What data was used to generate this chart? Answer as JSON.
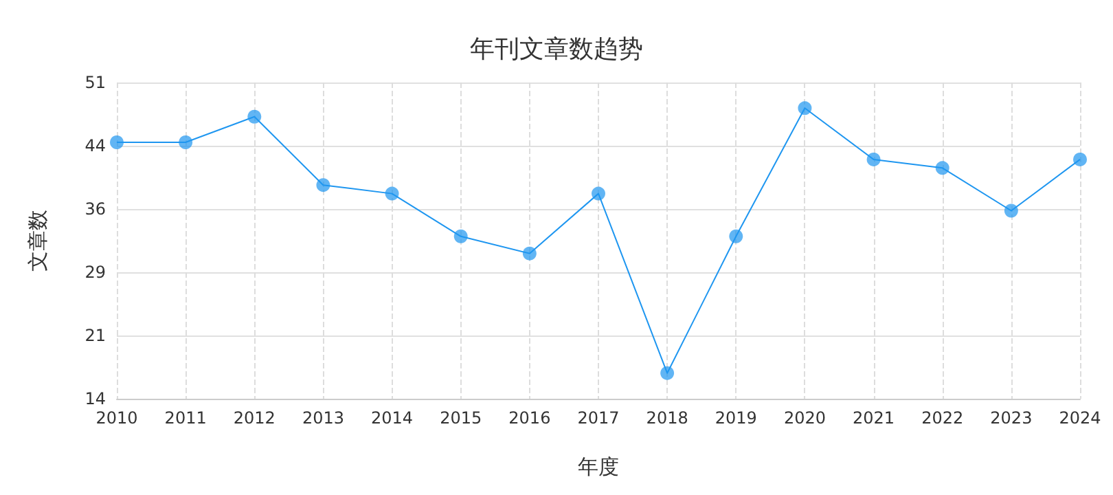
{
  "chart_data": {
    "type": "line",
    "title": "年刊文章数趋势",
    "xlabel": "年度",
    "ylabel": "文章数",
    "categories": [
      "2010",
      "2011",
      "2012",
      "2013",
      "2014",
      "2015",
      "2016",
      "2017",
      "2018",
      "2019",
      "2020",
      "2021",
      "2022",
      "2023",
      "2024"
    ],
    "series": [
      {
        "color": "#1e96f0",
        "values": [
          44,
          44,
          47,
          39,
          38,
          33,
          31,
          38,
          17,
          33,
          48,
          42,
          41,
          36,
          42
        ]
      }
    ],
    "ylim": [
      14,
      51
    ],
    "yticks": [
      14,
      {
        "value": 21.4,
        "label": "21"
      },
      {
        "value": 28.8,
        "label": "29"
      },
      {
        "value": 36.2,
        "label": "36"
      },
      {
        "value": 43.6,
        "label": "44"
      },
      51
    ],
    "grid": true,
    "marker": "circle",
    "line_style": "solid"
  }
}
